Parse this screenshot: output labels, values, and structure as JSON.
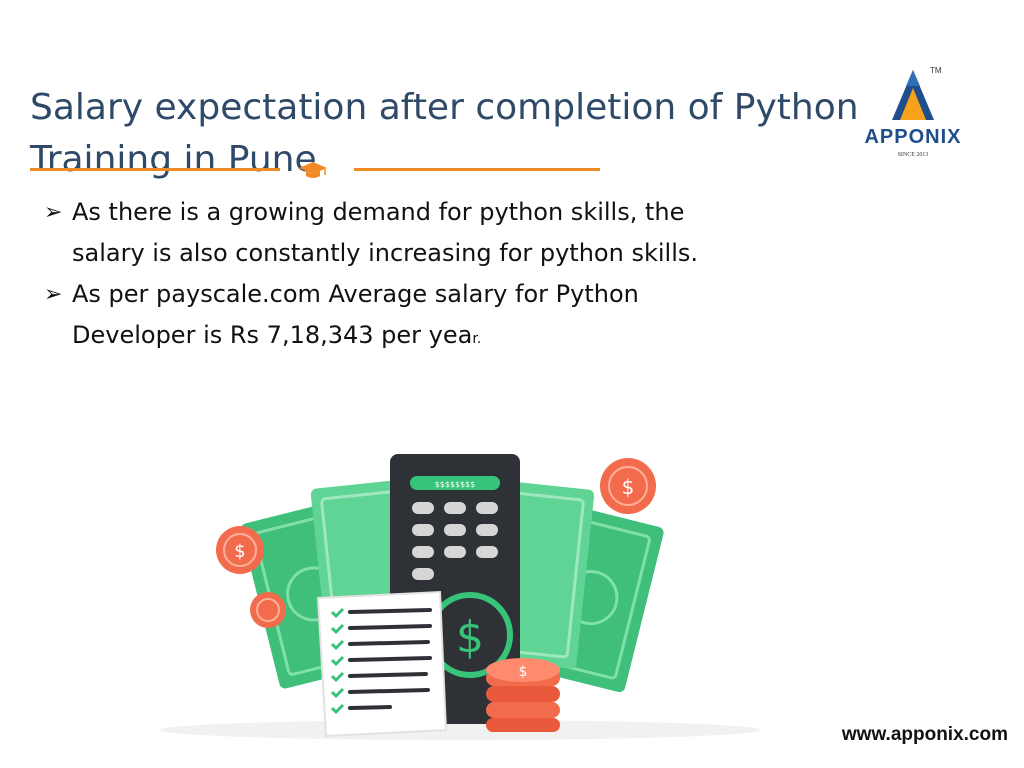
{
  "slide": {
    "title_line1": "Salary expectation after completion of Python",
    "title_line2": "Training in Pune"
  },
  "logo": {
    "name": "APPONIX",
    "tm": "TM",
    "since": "SINCE 2013"
  },
  "bullets": [
    {
      "line1": "As there is a growing demand for python skills, the",
      "line2": "salary is also constantly increasing for python skills."
    },
    {
      "line1": "As per payscale.com Average salary for Python",
      "line2_main": "Developer is Rs 7,18,343 per yea",
      "line2_tail": "r."
    }
  ],
  "illustration": {
    "calculator_display": "$$$$$$$$",
    "icons": [
      "calculator-icon",
      "banknote-icon",
      "coin-icon",
      "checklist-icon",
      "dollar-icon"
    ]
  },
  "footer": {
    "website": "www.apponix.com"
  },
  "colors": {
    "title": "#2f4a68",
    "accent_orange": "#f08a24",
    "money_green": "#3fbf7a",
    "coin_red": "#f26b4c",
    "logo_blue": "#1f4e8c"
  }
}
